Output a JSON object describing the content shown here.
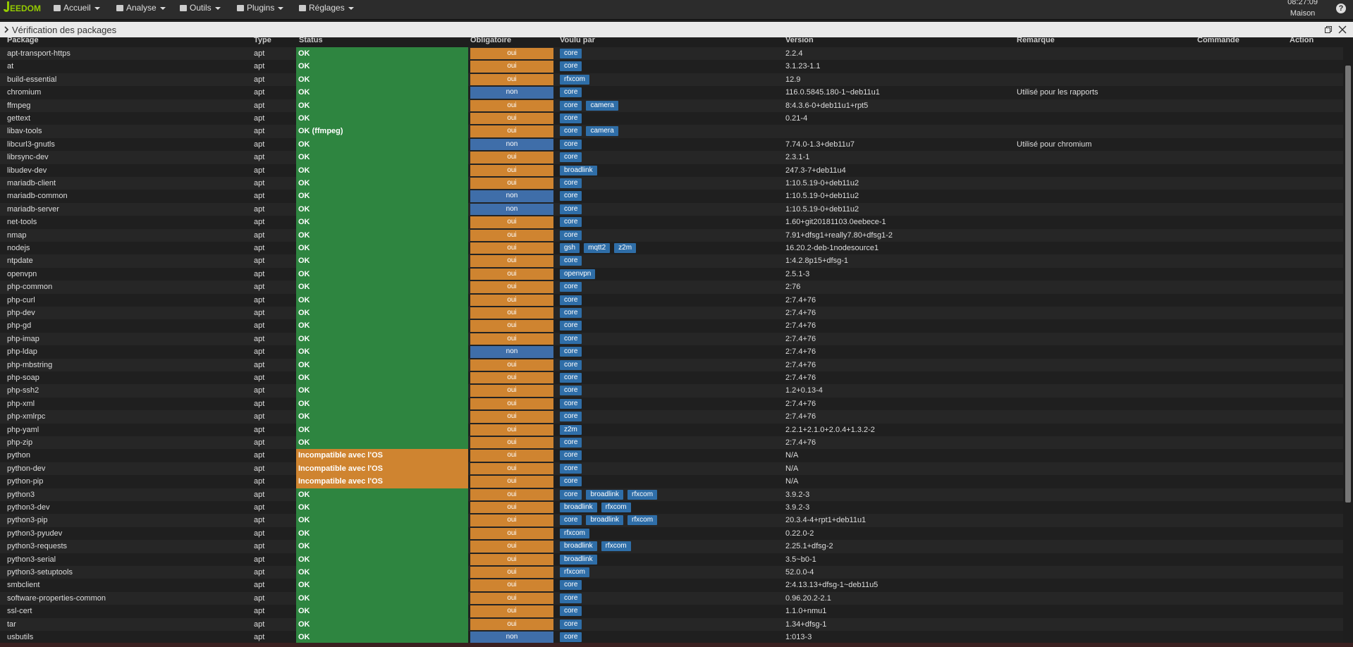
{
  "navbar": {
    "brand": "EEDOM",
    "menu": [
      "Accueil",
      "Analyse",
      "Outils",
      "Plugins",
      "Réglages"
    ],
    "time": "08:27:09",
    "location": "Maison",
    "help": "?"
  },
  "modal": {
    "title": "Vérification des packages"
  },
  "table": {
    "headers": [
      "Package",
      "Type",
      "Status",
      "Obligatoire",
      "Voulu par",
      "Version",
      "Remarque",
      "Commande",
      "Action"
    ],
    "rows": [
      {
        "package": "apt-transport-https",
        "type": "apt",
        "status": "OK",
        "required": "oui",
        "wanted_by": [
          "core"
        ],
        "version": "2.2.4"
      },
      {
        "package": "at",
        "type": "apt",
        "status": "OK",
        "required": "oui",
        "wanted_by": [
          "core"
        ],
        "version": "3.1.23-1.1"
      },
      {
        "package": "build-essential",
        "type": "apt",
        "status": "OK",
        "required": "oui",
        "wanted_by": [
          "rfxcom"
        ],
        "version": "12.9"
      },
      {
        "package": "chromium",
        "type": "apt",
        "status": "OK",
        "required": "non",
        "wanted_by": [
          "core"
        ],
        "version": "116.0.5845.180-1~deb11u1",
        "remark": "Utilisé pour les rapports"
      },
      {
        "package": "ffmpeg",
        "type": "apt",
        "status": "OK",
        "required": "oui",
        "wanted_by": [
          "core",
          "camera"
        ],
        "version": "8:4.3.6-0+deb11u1+rpt5"
      },
      {
        "package": "gettext",
        "type": "apt",
        "status": "OK",
        "required": "oui",
        "wanted_by": [
          "core"
        ],
        "version": "0.21-4"
      },
      {
        "package": "libav-tools",
        "type": "apt",
        "status": "OK (ffmpeg)",
        "required": "oui",
        "wanted_by": [
          "core",
          "camera"
        ]
      },
      {
        "package": "libcurl3-gnutls",
        "type": "apt",
        "status": "OK",
        "required": "non",
        "wanted_by": [
          "core"
        ],
        "version": "7.74.0-1.3+deb11u7",
        "remark": "Utilisé pour chromium"
      },
      {
        "package": "librsync-dev",
        "type": "apt",
        "status": "OK",
        "required": "oui",
        "wanted_by": [
          "core"
        ],
        "version": "2.3.1-1"
      },
      {
        "package": "libudev-dev",
        "type": "apt",
        "status": "OK",
        "required": "oui",
        "wanted_by": [
          "broadlink"
        ],
        "version": "247.3-7+deb11u4"
      },
      {
        "package": "mariadb-client",
        "type": "apt",
        "status": "OK",
        "required": "oui",
        "wanted_by": [
          "core"
        ],
        "version": "1:10.5.19-0+deb11u2"
      },
      {
        "package": "mariadb-common",
        "type": "apt",
        "status": "OK",
        "required": "non",
        "wanted_by": [
          "core"
        ],
        "version": "1:10.5.19-0+deb11u2"
      },
      {
        "package": "mariadb-server",
        "type": "apt",
        "status": "OK",
        "required": "non",
        "wanted_by": [
          "core"
        ],
        "version": "1:10.5.19-0+deb11u2"
      },
      {
        "package": "net-tools",
        "type": "apt",
        "status": "OK",
        "required": "oui",
        "wanted_by": [
          "core"
        ],
        "version": "1.60+git20181103.0eebece-1"
      },
      {
        "package": "nmap",
        "type": "apt",
        "status": "OK",
        "required": "oui",
        "wanted_by": [
          "core"
        ],
        "version": "7.91+dfsg1+really7.80+dfsg1-2"
      },
      {
        "package": "nodejs",
        "type": "apt",
        "status": "OK",
        "required": "oui",
        "wanted_by": [
          "gsh",
          "mqtt2",
          "z2m"
        ],
        "version": "16.20.2-deb-1nodesource1"
      },
      {
        "package": "ntpdate",
        "type": "apt",
        "status": "OK",
        "required": "oui",
        "wanted_by": [
          "core"
        ],
        "version": "1:4.2.8p15+dfsg-1"
      },
      {
        "package": "openvpn",
        "type": "apt",
        "status": "OK",
        "required": "oui",
        "wanted_by": [
          "openvpn"
        ],
        "version": "2.5.1-3"
      },
      {
        "package": "php-common",
        "type": "apt",
        "status": "OK",
        "required": "oui",
        "wanted_by": [
          "core"
        ],
        "version": "2:76"
      },
      {
        "package": "php-curl",
        "type": "apt",
        "status": "OK",
        "required": "oui",
        "wanted_by": [
          "core"
        ],
        "version": "2:7.4+76"
      },
      {
        "package": "php-dev",
        "type": "apt",
        "status": "OK",
        "required": "oui",
        "wanted_by": [
          "core"
        ],
        "version": "2:7.4+76"
      },
      {
        "package": "php-gd",
        "type": "apt",
        "status": "OK",
        "required": "oui",
        "wanted_by": [
          "core"
        ],
        "version": "2:7.4+76"
      },
      {
        "package": "php-imap",
        "type": "apt",
        "status": "OK",
        "required": "oui",
        "wanted_by": [
          "core"
        ],
        "version": "2:7.4+76"
      },
      {
        "package": "php-ldap",
        "type": "apt",
        "status": "OK",
        "required": "non",
        "wanted_by": [
          "core"
        ],
        "version": "2:7.4+76"
      },
      {
        "package": "php-mbstring",
        "type": "apt",
        "status": "OK",
        "required": "oui",
        "wanted_by": [
          "core"
        ],
        "version": "2:7.4+76"
      },
      {
        "package": "php-soap",
        "type": "apt",
        "status": "OK",
        "required": "oui",
        "wanted_by": [
          "core"
        ],
        "version": "2:7.4+76"
      },
      {
        "package": "php-ssh2",
        "type": "apt",
        "status": "OK",
        "required": "oui",
        "wanted_by": [
          "core"
        ],
        "version": "1.2+0.13-4"
      },
      {
        "package": "php-xml",
        "type": "apt",
        "status": "OK",
        "required": "oui",
        "wanted_by": [
          "core"
        ],
        "version": "2:7.4+76"
      },
      {
        "package": "php-xmlrpc",
        "type": "apt",
        "status": "OK",
        "required": "oui",
        "wanted_by": [
          "core"
        ],
        "version": "2:7.4+76"
      },
      {
        "package": "php-yaml",
        "type": "apt",
        "status": "OK",
        "required": "oui",
        "wanted_by": [
          "z2m"
        ],
        "version": "2.2.1+2.1.0+2.0.4+1.3.2-2"
      },
      {
        "package": "php-zip",
        "type": "apt",
        "status": "OK",
        "required": "oui",
        "wanted_by": [
          "core"
        ],
        "version": "2:7.4+76"
      },
      {
        "package": "python",
        "type": "apt",
        "status": "Incompatible avec l'OS",
        "required": "oui",
        "wanted_by": [
          "core"
        ],
        "version": "N/A"
      },
      {
        "package": "python-dev",
        "type": "apt",
        "status": "Incompatible avec l'OS",
        "required": "oui",
        "wanted_by": [
          "core"
        ],
        "version": "N/A"
      },
      {
        "package": "python-pip",
        "type": "apt",
        "status": "Incompatible avec l'OS",
        "required": "oui",
        "wanted_by": [
          "core"
        ],
        "version": "N/A"
      },
      {
        "package": "python3",
        "type": "apt",
        "status": "OK",
        "required": "oui",
        "wanted_by": [
          "core",
          "broadlink",
          "rfxcom"
        ],
        "version": "3.9.2-3"
      },
      {
        "package": "python3-dev",
        "type": "apt",
        "status": "OK",
        "required": "oui",
        "wanted_by": [
          "broadlink",
          "rfxcom"
        ],
        "version": "3.9.2-3"
      },
      {
        "package": "python3-pip",
        "type": "apt",
        "status": "OK",
        "required": "oui",
        "wanted_by": [
          "core",
          "broadlink",
          "rfxcom"
        ],
        "version": "20.3.4-4+rpt1+deb11u1"
      },
      {
        "package": "python3-pyudev",
        "type": "apt",
        "status": "OK",
        "required": "oui",
        "wanted_by": [
          "rfxcom"
        ],
        "version": "0.22.0-2"
      },
      {
        "package": "python3-requests",
        "type": "apt",
        "status": "OK",
        "required": "oui",
        "wanted_by": [
          "broadlink",
          "rfxcom"
        ],
        "version": "2.25.1+dfsg-2"
      },
      {
        "package": "python3-serial",
        "type": "apt",
        "status": "OK",
        "required": "oui",
        "wanted_by": [
          "broadlink"
        ],
        "version": "3.5~b0-1"
      },
      {
        "package": "python3-setuptools",
        "type": "apt",
        "status": "OK",
        "required": "oui",
        "wanted_by": [
          "rfxcom"
        ],
        "version": "52.0.0-4"
      },
      {
        "package": "smbclient",
        "type": "apt",
        "status": "OK",
        "required": "oui",
        "wanted_by": [
          "core"
        ],
        "version": "2:4.13.13+dfsg-1~deb11u5"
      },
      {
        "package": "software-properties-common",
        "type": "apt",
        "status": "OK",
        "required": "oui",
        "wanted_by": [
          "core"
        ],
        "version": "0.96.20.2-2.1"
      },
      {
        "package": "ssl-cert",
        "type": "apt",
        "status": "OK",
        "required": "oui",
        "wanted_by": [
          "core"
        ],
        "version": "1.1.0+nmu1"
      },
      {
        "package": "tar",
        "type": "apt",
        "status": "OK",
        "required": "oui",
        "wanted_by": [
          "core"
        ],
        "version": "1.34+dfsg-1"
      },
      {
        "package": "usbutils",
        "type": "apt",
        "status": "OK",
        "required": "non",
        "wanted_by": [
          "core"
        ],
        "version": "1:013-3"
      }
    ]
  }
}
